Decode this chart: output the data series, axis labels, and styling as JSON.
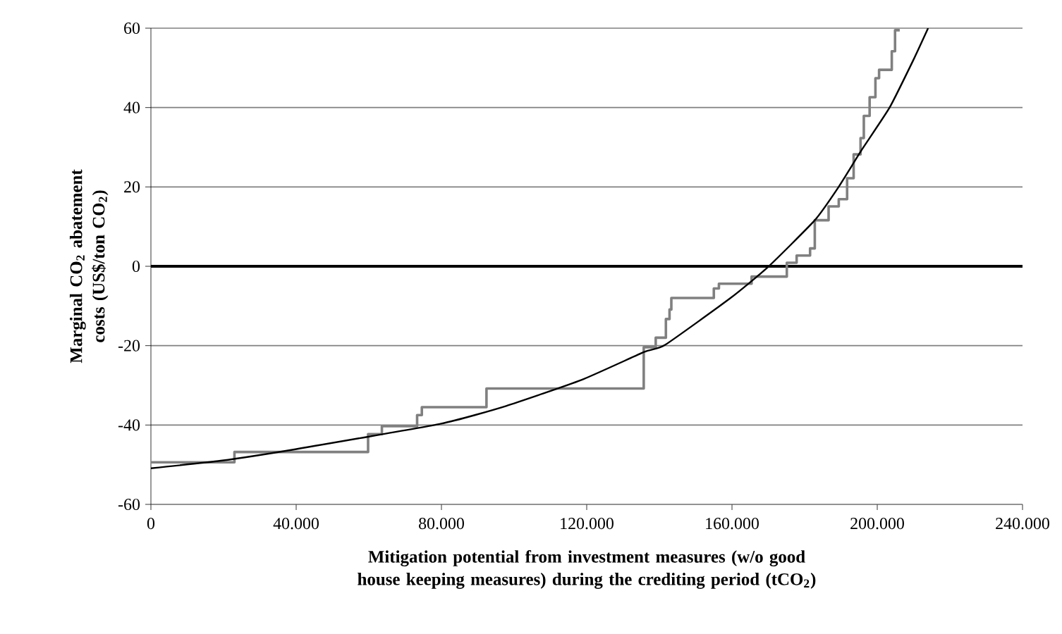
{
  "chart_data": {
    "type": "line",
    "xlabel": "Mitigation potential from investment measures (w/o good house keeping measures) during the crediting period (tCO$_{2}$)",
    "ylabel": "Marginal CO$_{2}$ abatement  costs (US$/ton CO$_{2}$)",
    "xlim": [
      0,
      240000
    ],
    "ylim": [
      -60,
      60
    ],
    "xticks": [
      0,
      {
        "value": 40000,
        "label": "40.000"
      },
      {
        "value": 80000,
        "label": "80.000"
      },
      {
        "value": 120000,
        "label": "120.000"
      },
      {
        "value": 160000,
        "label": "160.000"
      },
      {
        "value": 200000,
        "label": "200.000"
      },
      {
        "value": 240000,
        "label": "240.000"
      }
    ],
    "yticks": [
      -60,
      -40,
      -20,
      0,
      20,
      40,
      60
    ],
    "grid": "y",
    "marker": "none",
    "ref_lines": [
      {
        "axis": "y",
        "value": 0,
        "color": "#000000"
      }
    ],
    "series": [
      {
        "type": "step",
        "color": "#808080",
        "x": [
          0,
          23000,
          59800,
          63600,
          73300,
          74600,
          92400,
          135700,
          139000,
          141800,
          142800,
          143300,
          155000,
          156400,
          165400,
          175100,
          177800,
          181500,
          182800,
          186600,
          189400,
          191700,
          193500,
          195400,
          196300,
          197900,
          199500,
          200500,
          204000,
          204900,
          206200
        ],
        "values": [
          -49.4,
          -46.8,
          -42.3,
          -40.3,
          -37.5,
          -35.5,
          -30.8,
          -20.4,
          -18,
          -13.3,
          -10.9,
          -8,
          -5.6,
          -4.4,
          -2.6,
          0.9,
          2.7,
          4.5,
          11.6,
          15.1,
          16.9,
          22.2,
          28.2,
          32.3,
          37.9,
          42.6,
          47.4,
          49.5,
          54.2,
          59.5,
          59.5
        ]
      },
      {
        "color": "#000000",
        "x": [
          0,
          19200,
          39800,
          79700,
          97800,
          118400,
          135800,
          141600,
          159600,
          169900,
          182800,
          189300,
          195700,
          203400,
          209900,
          214000
        ],
        "values": [
          -50.9,
          -49,
          -46.1,
          -39.7,
          -35.2,
          -28.7,
          -21.6,
          -19.8,
          -8,
          -0.2,
          11.6,
          19.9,
          29.3,
          40,
          51.9,
          60
        ]
      }
    ]
  }
}
